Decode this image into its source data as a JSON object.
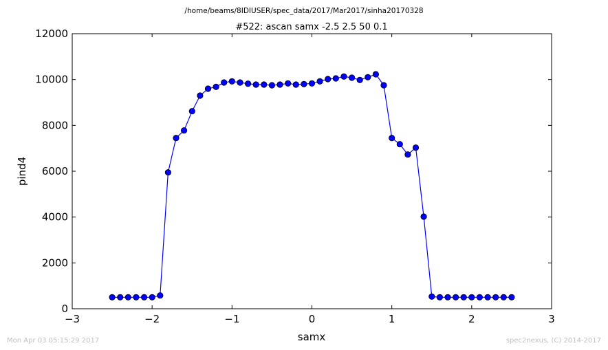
{
  "header": {
    "path": "/home/beams/8IDIUSER/spec_data/2017/Mar2017/sinha20170328"
  },
  "footer": {
    "timestamp": "Mon Apr 03 05:15:29 2017",
    "credit": "spec2nexus, (C) 2014-2017"
  },
  "colors": {
    "series": "#0000ff",
    "footer_text": "#c0c0c0"
  },
  "chart_data": {
    "type": "line",
    "title": "#522: ascan  samx -2.5 2.5  50 0.1",
    "xlabel": "samx",
    "ylabel": "pind4",
    "xlim": [
      -3,
      3
    ],
    "ylim": [
      0,
      12000
    ],
    "xticks": [
      -3,
      -2,
      -1,
      0,
      1,
      2,
      3
    ],
    "yticks": [
      0,
      2000,
      4000,
      6000,
      8000,
      10000,
      12000
    ],
    "xtick_labels": [
      "−3",
      "−2",
      "−1",
      "0",
      "1",
      "2",
      "3"
    ],
    "ytick_labels": [
      "0",
      "2000",
      "4000",
      "6000",
      "8000",
      "10000",
      "12000"
    ],
    "grid": false,
    "marker": "circle",
    "series": [
      {
        "x": [
          -2.5,
          -2.4,
          -2.3,
          -2.2,
          -2.1,
          -2.0,
          -1.9,
          -1.8,
          -1.7,
          -1.6,
          -1.5,
          -1.4,
          -1.3,
          -1.2,
          -1.1,
          -1.0,
          -0.9,
          -0.8,
          -0.7,
          -0.6,
          -0.5,
          -0.4,
          -0.3,
          -0.2,
          -0.1,
          0.0,
          0.1,
          0.2,
          0.3,
          0.4,
          0.5,
          0.6,
          0.7,
          0.8,
          0.9,
          1.0,
          1.1,
          1.2,
          1.3,
          1.4,
          1.5,
          1.6,
          1.7,
          1.8,
          1.9,
          2.0,
          2.1,
          2.2,
          2.3,
          2.4,
          2.5
        ],
        "y": [
          500,
          500,
          500,
          500,
          500,
          500,
          580,
          5950,
          7450,
          7780,
          8620,
          9300,
          9600,
          9680,
          9870,
          9920,
          9870,
          9820,
          9780,
          9780,
          9750,
          9780,
          9830,
          9780,
          9800,
          9830,
          9920,
          10020,
          10050,
          10130,
          10080,
          9980,
          10100,
          10230,
          9750,
          7450,
          7180,
          6730,
          7030,
          4020,
          530,
          500,
          500,
          500,
          500,
          500,
          500,
          500,
          500,
          500,
          500
        ]
      }
    ]
  }
}
